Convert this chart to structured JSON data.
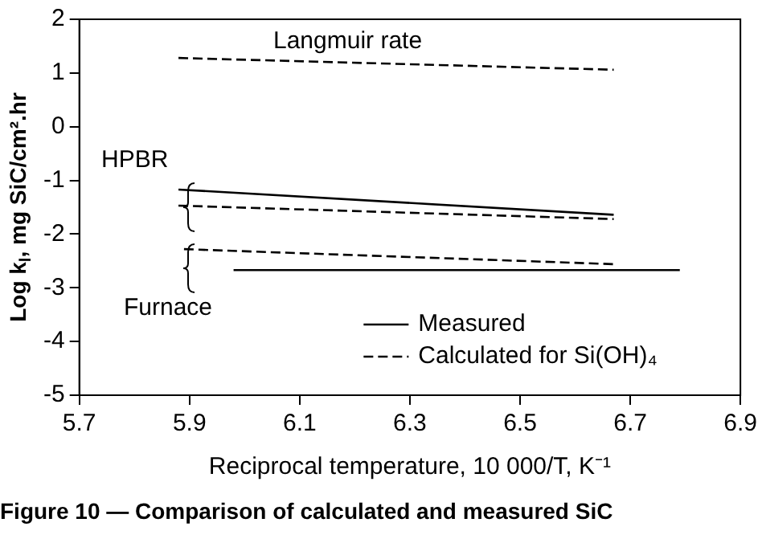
{
  "chart_data": {
    "type": "line",
    "xlabel": "Reciprocal temperature, 10 000/T, K⁻¹",
    "ylabel": "Log k$_{l}$, mg SiC/cm².hr",
    "xlim": [
      5.7,
      6.9
    ],
    "xticks": [
      5.7,
      5.9,
      6.1,
      6.3,
      6.5,
      6.7,
      6.9
    ],
    "ylim": [
      -5,
      2
    ],
    "yticks": [
      -5,
      -4,
      -3,
      -2,
      -1,
      0,
      1,
      2
    ],
    "grid": false,
    "legend": "bottom right",
    "series": [
      {
        "color": "#000000",
        "line_style": "dashed",
        "x": [
          5.88,
          6.67
        ],
        "values": [
          1.28,
          1.06
        ]
      },
      {
        "name": "Measured",
        "color": "#000000",
        "line_style": "solid",
        "x": [
          5.88,
          6.67
        ],
        "values": [
          -1.17,
          -1.64
        ]
      },
      {
        "color": "#000000",
        "line_style": "dashed",
        "x": [
          5.88,
          6.67
        ],
        "values": [
          -1.47,
          -1.72
        ]
      },
      {
        "name": "Calculated for Si(OH)₄",
        "color": "#000000",
        "line_style": "dashed",
        "x": [
          5.89,
          6.67
        ],
        "values": [
          -2.28,
          -2.56
        ]
      },
      {
        "color": "#000000",
        "line_style": "solid",
        "x": [
          5.98,
          6.79
        ],
        "values": [
          -2.67,
          -2.67
        ]
      }
    ],
    "annotations": [
      "Langmuir rate",
      "HPBR",
      "Furnace",
      "Figure 10 — Comparison of calculated and measured SiC"
    ]
  }
}
